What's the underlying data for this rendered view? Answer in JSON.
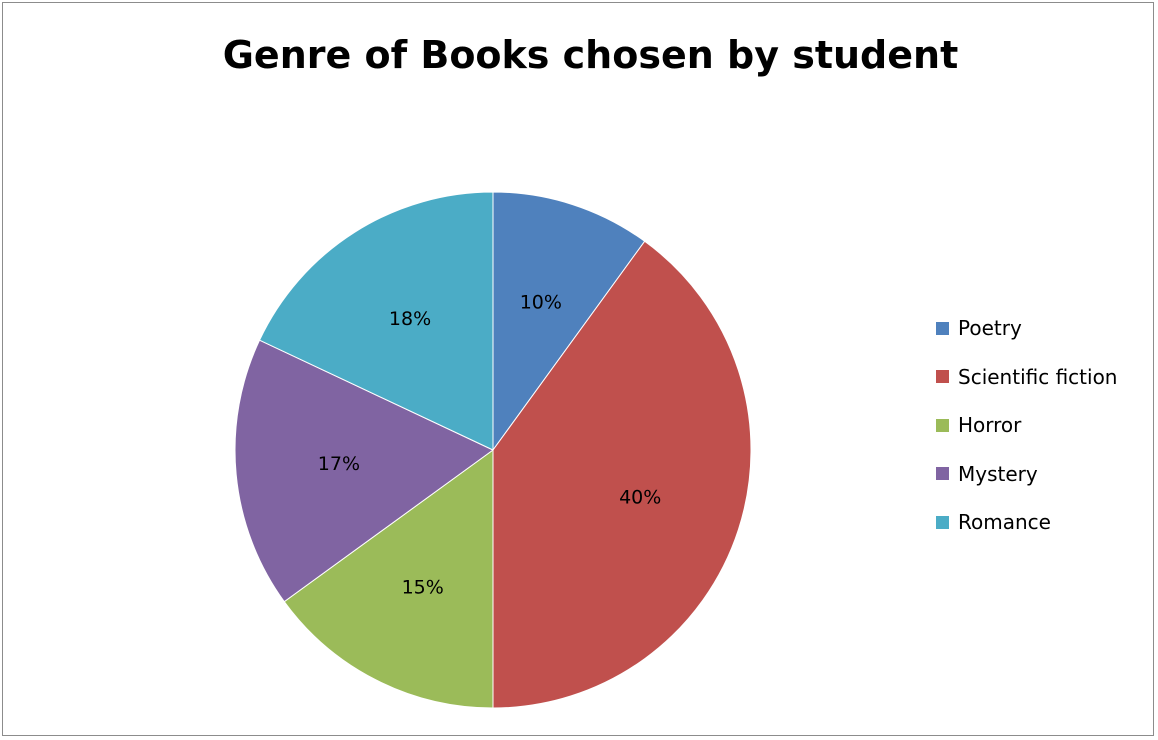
{
  "chart_data": {
    "type": "pie",
    "title": "Genre of Books chosen by student",
    "categories": [
      "Poetry",
      "Scientific fiction",
      "Horror",
      "Mystery",
      "Romance"
    ],
    "values": [
      10,
      40,
      15,
      17,
      18
    ],
    "value_labels": [
      "10%",
      "40%",
      "15%",
      "17%",
      "18%"
    ],
    "colors": [
      "#4f81bd",
      "#c0504d",
      "#9bbb59",
      "#8064a2",
      "#4bacc6"
    ],
    "legend_position": "right"
  }
}
